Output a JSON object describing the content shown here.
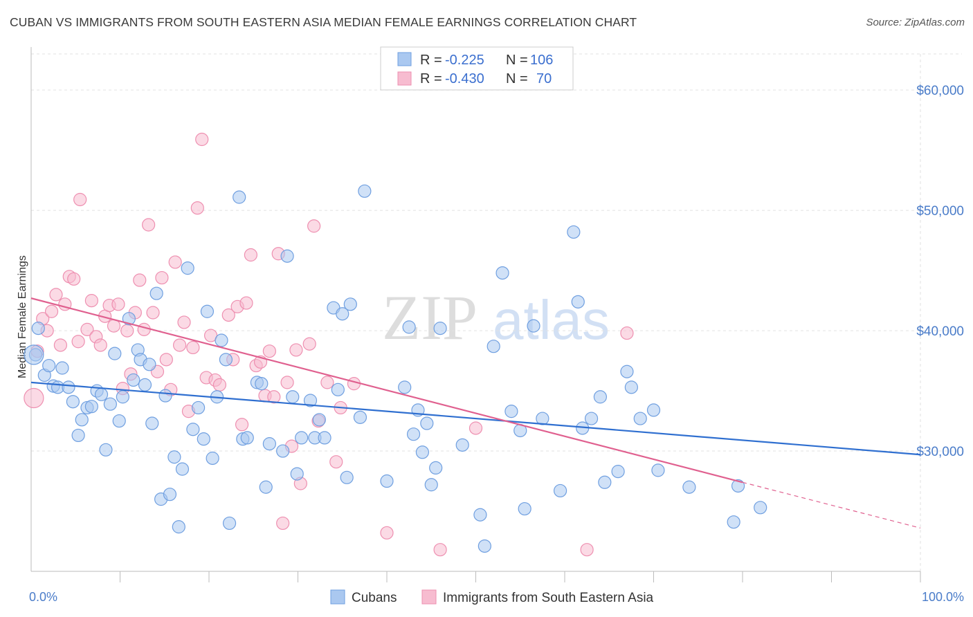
{
  "header": {
    "title": "CUBAN VS IMMIGRANTS FROM SOUTH EASTERN ASIA MEDIAN FEMALE EARNINGS CORRELATION CHART",
    "source": "Source: ZipAtlas.com"
  },
  "watermark": {
    "zip": "ZIP",
    "atlas": "atlas"
  },
  "colors": {
    "blue_fill": "#aac8f0",
    "blue_stroke": "#6f9fe0",
    "blue_line": "#2f6fd0",
    "pink_fill": "#f7bcd0",
    "pink_stroke": "#ee8fb0",
    "pink_line": "#e0608f",
    "tick_text": "#4a7cc9",
    "grid": "#e2e2e2"
  },
  "legend_box": {
    "rows": [
      {
        "r_label": "R =",
        "r_value": "-0.225",
        "n_label": "N =",
        "n_value": "106"
      },
      {
        "r_label": "R =",
        "r_value": "-0.430",
        "n_label": "N =",
        "n_value": "70"
      }
    ]
  },
  "chart_data": {
    "type": "scatter",
    "title": "CUBAN VS IMMIGRANTS FROM SOUTH EASTERN ASIA MEDIAN FEMALE EARNINGS CORRELATION CHART",
    "xlabel": "",
    "ylabel": "Median Female Earnings",
    "xlim": [
      0,
      100
    ],
    "ylim": [
      20000,
      63000
    ],
    "x_tick_labels": [
      "0.0%",
      "100.0%"
    ],
    "y_ticks": [
      30000,
      40000,
      50000,
      60000
    ],
    "y_tick_labels": [
      "$30,000",
      "$40,000",
      "$50,000",
      "$60,000"
    ],
    "grid": true,
    "legend_position": "top-center",
    "series": [
      {
        "name": "Cubans",
        "r": -0.225,
        "n": 106,
        "trend": {
          "x": [
            0,
            100
          ],
          "y": [
            35700,
            29700
          ]
        },
        "points": [
          [
            0.5,
            38000
          ],
          [
            0.8,
            40200
          ],
          [
            1.5,
            36300
          ],
          [
            2.0,
            37100
          ],
          [
            2.5,
            35400
          ],
          [
            3.0,
            35300
          ],
          [
            3.5,
            36900
          ],
          [
            4.2,
            35300
          ],
          [
            4.7,
            34100
          ],
          [
            5.3,
            31300
          ],
          [
            5.7,
            32600
          ],
          [
            6.3,
            33600
          ],
          [
            6.8,
            33700
          ],
          [
            7.4,
            35000
          ],
          [
            7.9,
            34700
          ],
          [
            8.4,
            30100
          ],
          [
            8.9,
            33900
          ],
          [
            9.4,
            38100
          ],
          [
            9.9,
            32500
          ],
          [
            10.3,
            34500
          ],
          [
            11.0,
            41000
          ],
          [
            11.5,
            35900
          ],
          [
            12.0,
            38400
          ],
          [
            12.3,
            37600
          ],
          [
            12.8,
            35500
          ],
          [
            13.3,
            37200
          ],
          [
            13.6,
            32300
          ],
          [
            14.1,
            43100
          ],
          [
            14.6,
            26000
          ],
          [
            15.1,
            34600
          ],
          [
            15.6,
            26400
          ],
          [
            16.1,
            29500
          ],
          [
            16.6,
            23700
          ],
          [
            17.0,
            28500
          ],
          [
            17.6,
            45200
          ],
          [
            18.2,
            31800
          ],
          [
            18.8,
            33600
          ],
          [
            19.4,
            31000
          ],
          [
            19.8,
            41600
          ],
          [
            20.4,
            29400
          ],
          [
            20.9,
            34500
          ],
          [
            21.4,
            39200
          ],
          [
            21.9,
            37600
          ],
          [
            22.3,
            24000
          ],
          [
            23.4,
            51100
          ],
          [
            23.8,
            31000
          ],
          [
            24.3,
            31100
          ],
          [
            25.4,
            35700
          ],
          [
            25.9,
            35600
          ],
          [
            26.4,
            27000
          ],
          [
            26.8,
            30600
          ],
          [
            28.3,
            30000
          ],
          [
            28.8,
            46200
          ],
          [
            29.4,
            34500
          ],
          [
            29.9,
            28100
          ],
          [
            30.4,
            31100
          ],
          [
            31.4,
            34200
          ],
          [
            31.9,
            31100
          ],
          [
            32.4,
            32600
          ],
          [
            33.0,
            31100
          ],
          [
            34.0,
            41900
          ],
          [
            34.5,
            35100
          ],
          [
            35.0,
            41400
          ],
          [
            35.5,
            27800
          ],
          [
            35.9,
            42200
          ],
          [
            37.0,
            32800
          ],
          [
            37.5,
            51600
          ],
          [
            40.0,
            27500
          ],
          [
            42.0,
            35300
          ],
          [
            42.5,
            40300
          ],
          [
            43.0,
            31400
          ],
          [
            43.5,
            33400
          ],
          [
            44.0,
            29900
          ],
          [
            44.5,
            32300
          ],
          [
            45.0,
            27200
          ],
          [
            45.5,
            28600
          ],
          [
            46.0,
            40200
          ],
          [
            48.5,
            30500
          ],
          [
            50.5,
            24700
          ],
          [
            51.0,
            22100
          ],
          [
            52.0,
            38700
          ],
          [
            53.0,
            44800
          ],
          [
            54.0,
            33300
          ],
          [
            55.0,
            31700
          ],
          [
            55.5,
            25200
          ],
          [
            56.5,
            40400
          ],
          [
            57.5,
            32700
          ],
          [
            59.5,
            26700
          ],
          [
            61.0,
            48200
          ],
          [
            61.5,
            42400
          ],
          [
            62.0,
            31900
          ],
          [
            63.0,
            32700
          ],
          [
            64.0,
            34500
          ],
          [
            64.5,
            27400
          ],
          [
            66.0,
            28300
          ],
          [
            67.0,
            36600
          ],
          [
            67.5,
            35300
          ],
          [
            68.5,
            32700
          ],
          [
            70.0,
            33400
          ],
          [
            70.5,
            28400
          ],
          [
            74.0,
            27000
          ],
          [
            79.0,
            24100
          ],
          [
            79.5,
            27100
          ],
          [
            82.0,
            25300
          ]
        ],
        "large_points": [
          [
            0.3,
            38000
          ]
        ]
      },
      {
        "name": "Immigrants from South Eastern Asia",
        "r": -0.43,
        "n": 70,
        "trend": {
          "x": [
            0,
            80
          ],
          "y": [
            42700,
            27400
          ]
        },
        "trend_dashed": {
          "x": [
            80,
            100
          ],
          "y": [
            27400,
            23600
          ]
        },
        "points": [
          [
            0.7,
            38300
          ],
          [
            1.3,
            41000
          ],
          [
            1.8,
            40000
          ],
          [
            2.3,
            41600
          ],
          [
            2.8,
            43000
          ],
          [
            3.3,
            38800
          ],
          [
            3.8,
            42200
          ],
          [
            4.3,
            44500
          ],
          [
            4.8,
            44300
          ],
          [
            5.3,
            39100
          ],
          [
            5.5,
            50900
          ],
          [
            6.3,
            40100
          ],
          [
            6.8,
            42500
          ],
          [
            7.3,
            39500
          ],
          [
            7.8,
            38800
          ],
          [
            8.3,
            41200
          ],
          [
            8.8,
            42100
          ],
          [
            9.3,
            40400
          ],
          [
            9.8,
            42200
          ],
          [
            10.3,
            35200
          ],
          [
            10.8,
            40000
          ],
          [
            11.2,
            36400
          ],
          [
            11.7,
            41500
          ],
          [
            12.2,
            44200
          ],
          [
            12.7,
            40100
          ],
          [
            13.2,
            48800
          ],
          [
            13.7,
            41500
          ],
          [
            14.2,
            36600
          ],
          [
            14.7,
            44400
          ],
          [
            15.2,
            37600
          ],
          [
            15.7,
            35100
          ],
          [
            16.2,
            45700
          ],
          [
            16.7,
            38800
          ],
          [
            17.2,
            40700
          ],
          [
            17.7,
            33300
          ],
          [
            18.2,
            38600
          ],
          [
            18.7,
            50200
          ],
          [
            19.2,
            55900
          ],
          [
            19.7,
            36100
          ],
          [
            20.2,
            39600
          ],
          [
            20.7,
            35900
          ],
          [
            21.2,
            35500
          ],
          [
            22.2,
            41300
          ],
          [
            22.7,
            37600
          ],
          [
            23.2,
            42000
          ],
          [
            23.7,
            32200
          ],
          [
            24.2,
            42300
          ],
          [
            24.7,
            46300
          ],
          [
            25.3,
            37100
          ],
          [
            25.8,
            37400
          ],
          [
            26.3,
            34600
          ],
          [
            26.8,
            38300
          ],
          [
            27.3,
            34500
          ],
          [
            27.8,
            46400
          ],
          [
            28.3,
            24000
          ],
          [
            28.8,
            35700
          ],
          [
            29.3,
            30400
          ],
          [
            29.8,
            38400
          ],
          [
            30.3,
            27300
          ],
          [
            31.3,
            38900
          ],
          [
            31.8,
            48700
          ],
          [
            32.3,
            32500
          ],
          [
            33.3,
            35700
          ],
          [
            34.3,
            29100
          ],
          [
            34.8,
            33600
          ],
          [
            36.3,
            35600
          ],
          [
            40.0,
            23200
          ],
          [
            46.0,
            21800
          ],
          [
            50.0,
            31900
          ],
          [
            62.5,
            21800
          ],
          [
            67.0,
            39800
          ]
        ],
        "large_points": [
          [
            0.3,
            34400
          ]
        ]
      }
    ]
  },
  "bottom_legend": [
    {
      "label": "Cubans"
    },
    {
      "label": "Immigrants from South Eastern Asia"
    }
  ]
}
